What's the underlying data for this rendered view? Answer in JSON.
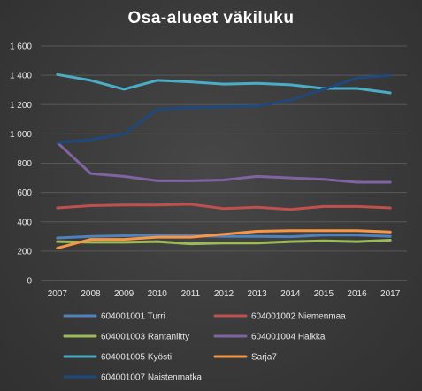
{
  "chart_data": {
    "type": "line",
    "title": "Osa-alueet väkiluku",
    "xlabel": "",
    "ylabel": "",
    "ylim": [
      0,
      1600
    ],
    "yticks": [
      0,
      200,
      400,
      600,
      800,
      1000,
      1200,
      1400,
      1600
    ],
    "ytick_labels": [
      "0",
      "200",
      "400",
      "600",
      "800",
      "1 000",
      "1 200",
      "1 400",
      "1 600"
    ],
    "categories": [
      "2007",
      "2008",
      "2009",
      "2010",
      "2011",
      "2012",
      "2013",
      "2014",
      "2015",
      "2016",
      "2017"
    ],
    "grid": true,
    "legend_position": "bottom",
    "series": [
      {
        "name": "604001001 Turri",
        "color": "#4f81bd",
        "values": [
          290,
          300,
          305,
          310,
          305,
          300,
          300,
          298,
          310,
          310,
          300
        ]
      },
      {
        "name": "604001002 Niemenmaa",
        "color": "#c0504d",
        "values": [
          495,
          510,
          515,
          515,
          520,
          490,
          500,
          485,
          505,
          505,
          495
        ]
      },
      {
        "name": "604001003 Rantaniitty",
        "color": "#9bbb59",
        "values": [
          265,
          260,
          260,
          265,
          250,
          255,
          255,
          265,
          270,
          265,
          275
        ]
      },
      {
        "name": "604001004 Haikka",
        "color": "#8064a2",
        "values": [
          940,
          730,
          710,
          680,
          680,
          685,
          710,
          700,
          690,
          670,
          670
        ]
      },
      {
        "name": "604001005 Kyösti",
        "color": "#4bacc6",
        "values": [
          1405,
          1365,
          1305,
          1365,
          1355,
          1340,
          1345,
          1335,
          1310,
          1310,
          1280
        ]
      },
      {
        "name": "Sarja7",
        "color": "#f79646",
        "values": [
          220,
          280,
          280,
          295,
          295,
          315,
          335,
          340,
          340,
          340,
          330
        ]
      },
      {
        "name": "604001007 Naistenmatka",
        "color": "#1f497d",
        "values": [
          940,
          960,
          1000,
          1165,
          1180,
          1185,
          1190,
          1230,
          1305,
          1380,
          1400
        ]
      }
    ]
  }
}
